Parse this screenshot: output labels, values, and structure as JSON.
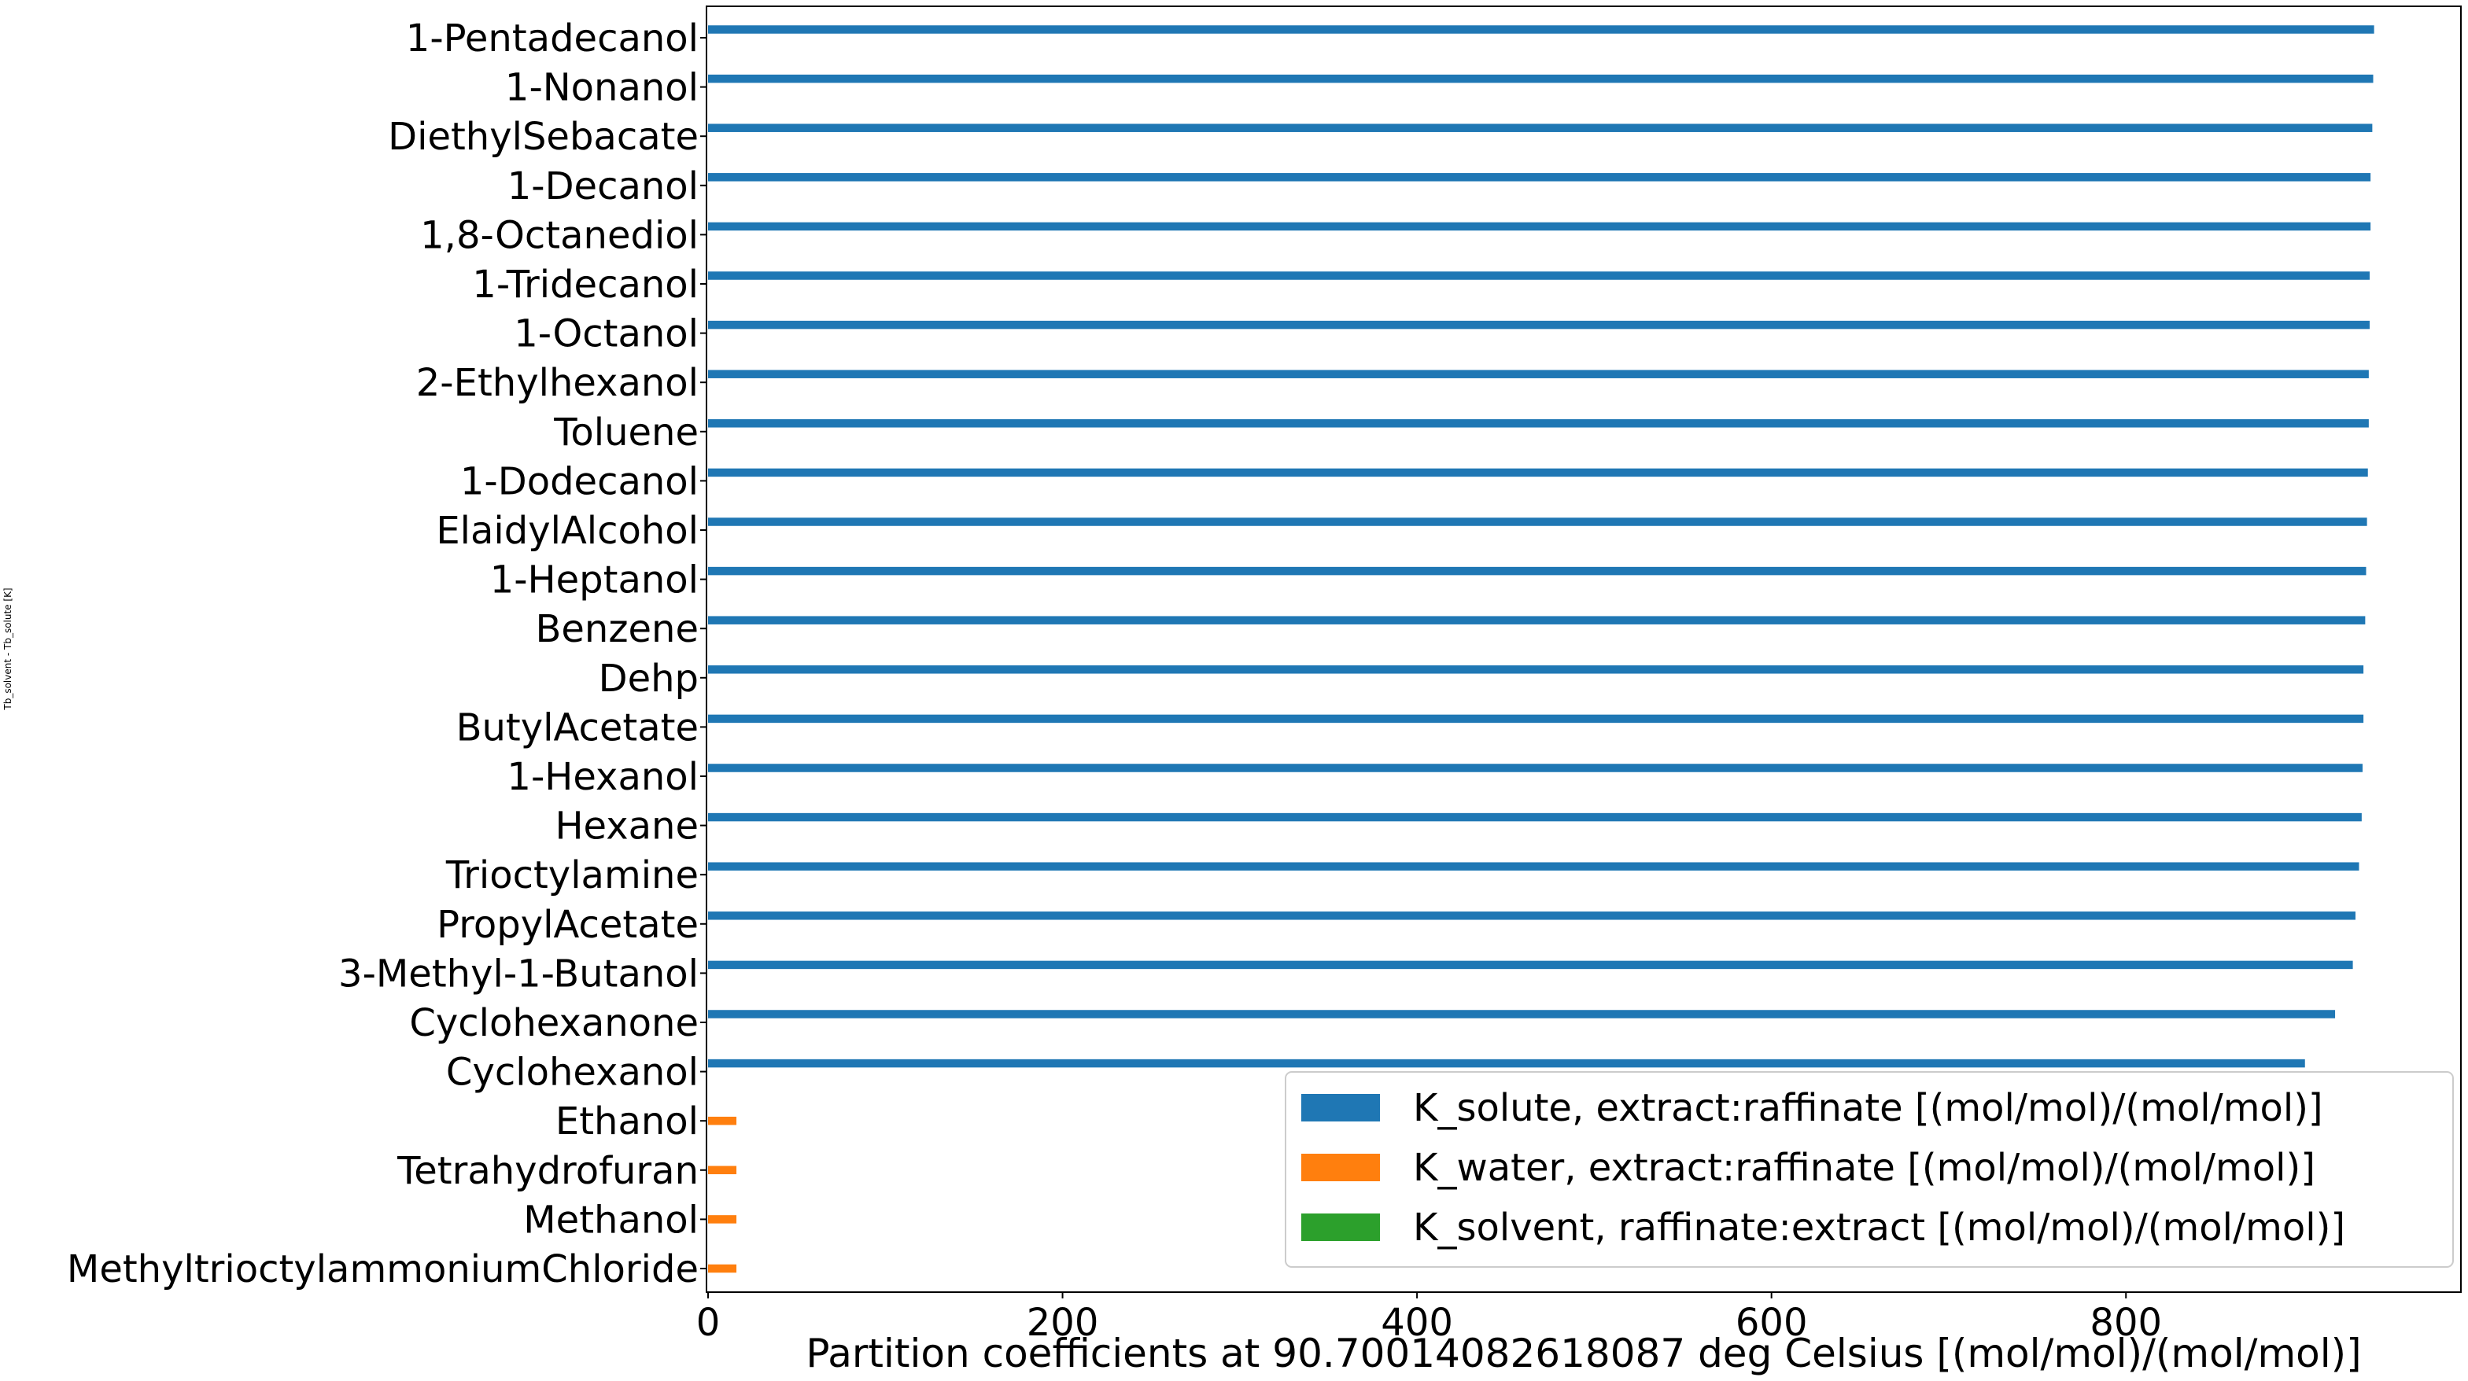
{
  "chart_data": {
    "type": "bar",
    "orientation": "horizontal",
    "categories": [
      "1-Pentadecanol",
      "1-Nonanol",
      "DiethylSebacate",
      "1-Decanol",
      "1,8-Octanediol",
      "1-Tridecanol",
      "1-Octanol",
      "2-Ethylhexanol",
      "Toluene",
      "1-Dodecanol",
      "ElaidylAlcohol",
      "1-Heptanol",
      "Benzene",
      "Dehp",
      "ButylAcetate",
      "1-Hexanol",
      "Hexane",
      "Trioctylamine",
      "PropylAcetate",
      "3-Methyl-1-Butanol",
      "Cyclohexanone",
      "Cyclohexanol",
      "Ethanol",
      "Tetrahydrofuran",
      "Methanol",
      "MethyltrioctylammoniumChloride"
    ],
    "series": [
      {
        "name": "K_solute, extract:raffinate [(mol/mol)/(mol/mol)]",
        "color": "#1f77b4",
        "values": [
          940,
          939.5,
          939,
          938,
          938,
          937.5,
          937.5,
          937,
          937,
          936.5,
          936,
          935.5,
          935,
          934,
          934,
          933.5,
          933,
          931.5,
          929.5,
          928,
          918,
          901,
          0,
          0,
          0,
          0
        ]
      },
      {
        "name": "K_water, extract:raffinate [(mol/mol)/(mol/mol)]",
        "color": "#ff7f0e",
        "values": [
          0,
          0,
          0,
          0,
          0,
          0,
          0,
          0,
          0,
          0,
          0,
          0,
          0,
          0,
          0,
          0,
          0,
          0,
          0,
          0,
          0,
          0,
          16,
          16,
          16,
          16
        ]
      },
      {
        "name": "K_solvent, raffinate:extract [(mol/mol)/(mol/mol)]",
        "color": "#2ca02c",
        "values": [
          0,
          0,
          0,
          0,
          0,
          0,
          0,
          0,
          0,
          0,
          0,
          0,
          0,
          0,
          0,
          0,
          0,
          0,
          0,
          0,
          0,
          0,
          0,
          0,
          0,
          0
        ]
      }
    ],
    "xlabel": "Partition coefficients at 90.70014082618087 deg Celsius [(mol/mol)/(mol/mol)]",
    "ylabel": "Tb_solvent - Tb_solute [K]",
    "xlim": [
      0,
      985
    ],
    "xticks": [
      0,
      200,
      400,
      600,
      800
    ],
    "xtick_labels": [
      "0",
      "200",
      "400",
      "600",
      "800"
    ],
    "grid": false,
    "legend_position": "lower-right"
  }
}
